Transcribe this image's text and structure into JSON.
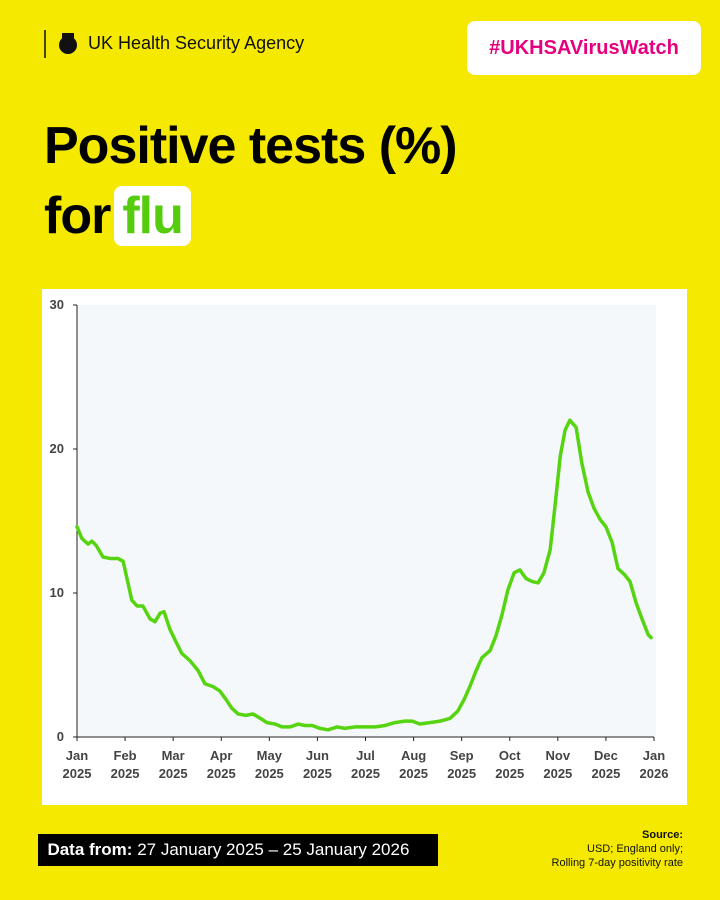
{
  "header": {
    "org": "UK Health Security Agency",
    "hashtag": "#UKHSAVirusWatch"
  },
  "title": {
    "line1": "Positive tests (%)",
    "prefix": "for",
    "highlight": "flu"
  },
  "chart_data": {
    "type": "line",
    "color": "#55d40f",
    "grid": false,
    "x": [
      0,
      0.1,
      0.23,
      0.31,
      0.4,
      0.54,
      0.69,
      0.85,
      0.96,
      1.04,
      1.14,
      1.25,
      1.37,
      1.52,
      1.62,
      1.73,
      1.81,
      1.93,
      2.06,
      2.18,
      2.35,
      2.52,
      2.66,
      2.83,
      2.97,
      3.1,
      3.22,
      3.35,
      3.51,
      3.66,
      3.81,
      3.95,
      4.12,
      4.26,
      4.43,
      4.6,
      4.74,
      4.89,
      5.05,
      5.22,
      5.41,
      5.57,
      5.78,
      5.99,
      6.2,
      6.41,
      6.61,
      6.82,
      6.97,
      7.13,
      7.34,
      7.55,
      7.76,
      7.92,
      8.05,
      8.17,
      8.3,
      8.42,
      8.59,
      8.71,
      8.84,
      8.96,
      9.09,
      9.21,
      9.34,
      9.46,
      9.59,
      9.71,
      9.84,
      9.94,
      10.05,
      10.15,
      10.25,
      10.38,
      10.5,
      10.63,
      10.75,
      10.88,
      11.0,
      11.13,
      11.25,
      11.38,
      11.5,
      11.63,
      11.75,
      11.88,
      11.94
    ],
    "values": [
      14.6,
      13.8,
      13.4,
      13.6,
      13.3,
      12.5,
      12.4,
      12.4,
      12.2,
      11.0,
      9.5,
      9.1,
      9.1,
      8.2,
      8.0,
      8.6,
      8.7,
      7.5,
      6.6,
      5.8,
      5.3,
      4.6,
      3.7,
      3.5,
      3.2,
      2.6,
      2.0,
      1.6,
      1.5,
      1.6,
      1.3,
      1.0,
      0.9,
      0.7,
      0.7,
      0.9,
      0.8,
      0.8,
      0.6,
      0.5,
      0.7,
      0.6,
      0.7,
      0.7,
      0.7,
      0.8,
      1.0,
      1.1,
      1.1,
      0.9,
      1.0,
      1.1,
      1.3,
      1.8,
      2.6,
      3.5,
      4.6,
      5.5,
      6.0,
      7.0,
      8.5,
      10.2,
      11.4,
      11.6,
      11.0,
      10.8,
      10.7,
      11.4,
      13.0,
      16.0,
      19.5,
      21.3,
      22.0,
      21.5,
      19.0,
      17.0,
      15.9,
      15.1,
      14.6,
      13.5,
      11.7,
      11.3,
      10.8,
      9.3,
      8.2,
      7.1,
      6.9
    ],
    "xlim": [
      0,
      12
    ],
    "ylim": [
      0,
      30
    ],
    "yticks": [
      0,
      10,
      20,
      30
    ],
    "xticks": [
      {
        "value": 0,
        "label": "Jan 2025"
      },
      {
        "value": 1,
        "label": "Feb 2025"
      },
      {
        "value": 2,
        "label": "Mar 2025"
      },
      {
        "value": 3,
        "label": "Apr 2025"
      },
      {
        "value": 4,
        "label": "May 2025"
      },
      {
        "value": 5,
        "label": "Jun 2025"
      },
      {
        "value": 6,
        "label": "Jul 2025"
      },
      {
        "value": 7,
        "label": "Aug 2025"
      },
      {
        "value": 8,
        "label": "Sep 2025"
      },
      {
        "value": 9,
        "label": "Oct 2025"
      },
      {
        "value": 10,
        "label": "Nov 2025"
      },
      {
        "value": 11,
        "label": "Dec 2025"
      },
      {
        "value": 12,
        "label": "Jan 2026"
      }
    ]
  },
  "footer": {
    "label": "Data from:",
    "range": "27 January 2025 – 25 January 2026"
  },
  "source": {
    "label": "Source:",
    "lines": [
      "USD; England only;",
      "Rolling 7-day positivity rate"
    ]
  }
}
